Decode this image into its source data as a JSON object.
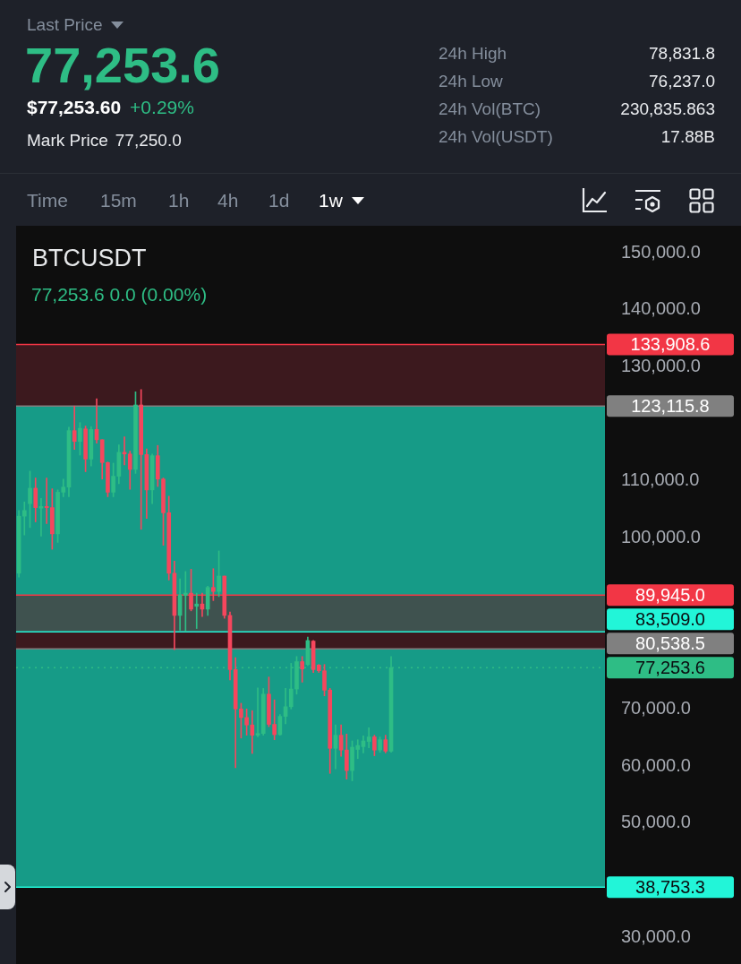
{
  "chart_data": [
    {
      "type": "other",
      "title": "Last Price",
      "subtitle": "77,253.6",
      "annotations": [
        "$77,253.60",
        "+0.29%",
        "Mark Price",
        "77,250.0",
        "24h High",
        "78,831.8",
        "24h Low",
        "76,237.0",
        "24h Vol(BTC)",
        "230,835.863",
        "24h Vol(USDT)",
        "17.88B",
        "Time",
        "15m",
        "1h",
        "4h",
        "1d",
        "1w"
      ]
    },
    {
      "type": "candlestick",
      "title": "BTCUSDT",
      "subtitle": "77,253.6 0.0 (0.00%)",
      "tick_labels": "y",
      "categories": [
        null,
        null,
        null,
        null,
        null,
        null,
        null,
        null,
        null,
        null,
        null,
        null,
        null,
        null,
        null,
        null,
        null,
        null,
        null,
        null,
        null,
        null,
        null,
        null,
        null,
        null,
        null,
        null,
        null,
        null,
        null,
        null,
        null,
        null,
        null,
        null,
        null,
        null,
        null,
        null,
        null,
        null,
        null,
        null,
        null,
        null,
        null,
        null,
        null,
        null,
        null,
        null,
        null,
        null,
        null,
        null,
        null,
        null,
        null,
        null,
        null,
        null,
        null,
        null,
        null,
        null,
        null,
        null,
        null,
        null,
        null,
        null,
        null,
        null,
        null,
        null,
        null,
        null,
        null,
        null,
        null,
        null,
        null,
        null,
        null,
        null,
        null,
        null,
        null,
        null,
        null,
        null,
        null,
        null,
        null,
        null,
        null,
        null,
        null,
        null,
        null,
        null,
        null,
        null,
        null,
        null
      ],
      "ohlc": [
        [
          93800,
          104800,
          93100,
          103800
        ],
        [
          103800,
          106300,
          100500,
          104800
        ],
        [
          106000,
          111700,
          101800,
          108700
        ],
        [
          108700,
          110500,
          102800,
          105300
        ],
        [
          105200,
          106900,
          100300,
          105500
        ],
        [
          105500,
          110500,
          102500,
          105300
        ],
        [
          105300,
          108600,
          98000,
          100700
        ],
        [
          100700,
          108400,
          99200,
          108000
        ],
        [
          108000,
          110300,
          107200,
          108900
        ],
        [
          108900,
          119400,
          107200,
          118800
        ],
        [
          118800,
          123100,
          115500,
          116900
        ],
        [
          116900,
          120200,
          114500,
          119200
        ],
        [
          119100,
          119600,
          111600,
          113800
        ],
        [
          113800,
          119500,
          112600,
          119000
        ],
        [
          119000,
          124400,
          116600,
          117200
        ],
        [
          117200,
          117200,
          110300,
          113200
        ],
        [
          113200,
          113300,
          107200,
          108000
        ],
        [
          108000,
          113100,
          107200,
          110800
        ],
        [
          110800,
          116300,
          109500,
          115000
        ],
        [
          115000,
          117700,
          112800,
          114700
        ],
        [
          114700,
          115200,
          108500,
          112000
        ],
        [
          112000,
          125600,
          111300,
          123300
        ],
        [
          123300,
          126000,
          101500,
          114600
        ],
        [
          114600,
          115600,
          103400,
          108400
        ],
        [
          108400,
          114700,
          106000,
          114400
        ],
        [
          114400,
          116200,
          109000,
          110300
        ],
        [
          110300,
          110500,
          98700,
          104400
        ],
        [
          104400,
          107300,
          92600,
          93800
        ],
        [
          93800,
          95900,
          80400,
          86400
        ],
        [
          86400,
          92800,
          83800,
          90000
        ],
        [
          89900,
          94100,
          83600,
          90300
        ],
        [
          90300,
          94500,
          87200,
          87500
        ],
        [
          88000,
          90300,
          84100,
          88400
        ],
        [
          88400,
          90300,
          86200,
          87500
        ],
        [
          87500,
          91500,
          86400,
          91300
        ],
        [
          91300,
          94600,
          89000,
          90600
        ],
        [
          90600,
          97700,
          89700,
          93300
        ],
        [
          93300,
          93300,
          85900,
          86400
        ],
        [
          86400,
          87000,
          75100,
          76900
        ],
        [
          76900,
          79000,
          59700,
          70000
        ],
        [
          70000,
          71000,
          64900,
          68500
        ],
        [
          68500,
          70000,
          65400,
          67200
        ],
        [
          67200,
          69700,
          62200,
          65400
        ],
        [
          65400,
          73700,
          65100,
          65700
        ],
        [
          65700,
          73600,
          65400,
          72600
        ],
        [
          72600,
          75600,
          66900,
          67300
        ],
        [
          67300,
          71600,
          64600,
          65500
        ],
        [
          65500,
          69000,
          65400,
          68700
        ],
        [
          68700,
          73600,
          67400,
          70400
        ],
        [
          70400,
          78000,
          70000,
          73500
        ],
        [
          73500,
          79200,
          72600,
          78300
        ],
        [
          78300,
          79200,
          74700,
          77000
        ],
        [
          77800,
          82600,
          77600,
          82000
        ],
        [
          81900,
          82000,
          76400,
          76900
        ],
        [
          77700,
          77800,
          76400,
          76700
        ],
        [
          76700,
          77800,
          72300,
          73300
        ],
        [
          73300,
          73600,
          58700,
          63100
        ],
        [
          63100,
          67200,
          59500,
          65400
        ],
        [
          65400,
          67200,
          61700,
          62800
        ],
        [
          62800,
          65600,
          57700,
          59200
        ],
        [
          59200,
          64400,
          57400,
          63300
        ],
        [
          62900,
          64600,
          61300,
          63600
        ],
        [
          63400,
          65300,
          62300,
          64400
        ],
        [
          64300,
          66700,
          63200,
          65100
        ],
        [
          65100,
          65400,
          61800,
          62800
        ],
        [
          62800,
          65100,
          62400,
          64600
        ],
        [
          64600,
          65400,
          62300,
          62600
        ],
        [
          62600,
          79200,
          62400,
          77253.6
        ],
        null,
        null,
        null,
        null,
        null,
        null,
        null,
        null,
        null,
        null,
        null,
        null,
        null,
        null,
        null,
        null,
        null,
        null,
        null,
        null,
        null,
        null,
        null,
        null,
        null,
        null,
        null,
        null,
        null,
        null,
        null,
        null,
        null,
        null,
        null,
        null,
        null,
        null
      ],
      "colors": [
        "#2ebd85",
        "#2ebd85",
        "#2ebd85",
        "#f6465d",
        "#2ebd85",
        "#f6465d",
        "#f6465d",
        "#2ebd85",
        "#2ebd85",
        "#2ebd85",
        "#f6465d",
        "#2ebd85",
        "#f6465d",
        "#2ebd85",
        "#f6465d",
        "#f6465d",
        "#f6465d",
        "#2ebd85",
        "#2ebd85",
        "#f6465d",
        "#f6465d",
        "#2ebd85",
        "#f6465d",
        "#f6465d",
        "#2ebd85",
        "#f6465d",
        "#f6465d",
        "#f6465d",
        "#f6465d",
        "#2ebd85",
        "#2ebd85",
        "#f6465d",
        "#2ebd85",
        "#f6465d",
        "#2ebd85",
        "#f6465d",
        "#2ebd85",
        "#f6465d",
        "#f6465d",
        "#f6465d",
        "#f6465d",
        "#f6465d",
        "#f6465d",
        "#2ebd85",
        "#2ebd85",
        "#f6465d",
        "#f6465d",
        "#2ebd85",
        "#2ebd85",
        "#2ebd85",
        "#2ebd85",
        "#f6465d",
        "#2ebd85",
        "#f6465d",
        "#f6465d",
        "#f6465d",
        "#f6465d",
        "#2ebd85",
        "#f6465d",
        "#f6465d",
        "#2ebd85",
        "#2ebd85",
        "#2ebd85",
        "#2ebd85",
        "#f6465d",
        "#2ebd85",
        "#f6465d",
        "#2ebd85",
        null,
        null,
        null,
        null,
        null,
        null,
        null,
        null,
        null,
        null,
        null,
        null,
        null,
        null,
        null,
        null,
        null,
        null,
        null,
        null,
        null,
        null,
        null,
        null,
        null,
        null,
        null,
        null,
        null,
        null,
        null,
        null,
        null,
        null,
        null,
        null,
        null,
        null
      ],
      "ylim": [
        30000,
        150000
      ],
      "yticks": [
        {
          "value": 30000,
          "label": "30,000.0"
        },
        {
          "value": 50000,
          "label": "50,000.0"
        },
        {
          "value": 60000,
          "label": "60,000.0"
        },
        {
          "value": 70000,
          "label": "70,000.0"
        },
        {
          "value": 100000,
          "label": "100,000.0"
        },
        {
          "value": 110000,
          "label": "110,000.0"
        },
        {
          "value": 130000,
          "label": "130,000.0"
        },
        {
          "value": 140000,
          "label": "140,000.0"
        },
        {
          "value": 150000,
          "label": "150,000.0"
        }
      ],
      "bands": [
        {
          "axis": "y",
          "from": 123115.8,
          "to": 133908.6,
          "color": "#5b2229"
        },
        {
          "axis": "y",
          "from": 83509,
          "to": 123115.8,
          "color": "#1dfad9"
        },
        {
          "axis": "y",
          "from": 80538.5,
          "to": 89945,
          "color": "#5b2229"
        },
        {
          "axis": "y",
          "from": 38753.3,
          "to": 80538.5,
          "color": "#1dfad9"
        }
      ],
      "ref_lines": [
        {
          "axis": "y",
          "value": 133908.6,
          "label": "133,908.6",
          "color": "#f23645"
        },
        {
          "axis": "y",
          "value": 123115.8,
          "label": "123,115.8",
          "color": "#808080"
        },
        {
          "axis": "y",
          "value": 89945,
          "label": "89,945.0",
          "color": "#f23645"
        },
        {
          "axis": "y",
          "value": 83509,
          "label": "83,509.0",
          "color": "#22f5d8"
        },
        {
          "axis": "y",
          "value": 80538.5,
          "label": "80,538.5",
          "color": "#808080"
        },
        {
          "axis": "y",
          "value": 77253.6,
          "label": "77,253.6",
          "color": "#2ebd85",
          "line_style": "dotted"
        },
        {
          "axis": "y",
          "value": 38753.3,
          "label": "38,753.3",
          "color": "#22f5d8"
        }
      ]
    }
  ]
}
